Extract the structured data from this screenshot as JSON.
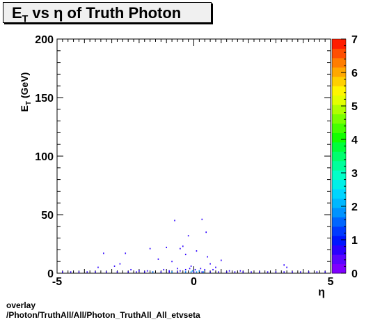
{
  "chart_data": {
    "type": "heatmap",
    "title": {
      "prefix": "E",
      "sub": "T",
      "rest": " vs  η of Truth Photon"
    },
    "xlabel": "η",
    "ylabel": {
      "prefix": "E",
      "sub": "T",
      "rest": " (GeV)"
    },
    "xlim": [
      -5,
      5
    ],
    "ylim": [
      0,
      200
    ],
    "x_ticks": [
      "-5",
      "0",
      "5"
    ],
    "y_ticks": [
      "0",
      "50",
      "100",
      "150",
      "200"
    ],
    "z_range": [
      0,
      7
    ],
    "z_ticks": [
      "0",
      "1",
      "2",
      "3",
      "4",
      "5",
      "6",
      "7"
    ],
    "grid": false,
    "palette": [
      "#7f00ff",
      "#5a05ff",
      "#2b00ff",
      "#0015ff",
      "#003aff",
      "#0066ff",
      "#0093ff",
      "#00b8ff",
      "#00d5ff",
      "#00f0e8",
      "#00ffc8",
      "#00ff9b",
      "#00ff6e",
      "#00ff3b",
      "#13ff00",
      "#45ff00",
      "#7aff00",
      "#b0ff00",
      "#e3ff00",
      "#fff600",
      "#ffd000",
      "#ffa800",
      "#ff7d00",
      "#ff4e00",
      "#ff1e00"
    ],
    "points": [
      [
        -0.7,
        45
      ],
      [
        0.3,
        46
      ],
      [
        0.45,
        35
      ],
      [
        -0.2,
        32
      ],
      [
        -0.4,
        23
      ],
      [
        -0.5,
        21
      ],
      [
        -1.0,
        22
      ],
      [
        -1.6,
        21
      ],
      [
        -2.5,
        17
      ],
      [
        -3.3,
        17
      ],
      [
        0.1,
        19
      ],
      [
        0.5,
        14
      ],
      [
        -0.3,
        16
      ],
      [
        0.6,
        8
      ],
      [
        -1.3,
        12
      ],
      [
        -0.8,
        10
      ],
      [
        1.0,
        11
      ],
      [
        -2.7,
        8
      ],
      [
        -2.9,
        6
      ],
      [
        3.3,
        7
      ],
      [
        3.4,
        5
      ],
      [
        -3.5,
        5
      ],
      [
        0.8,
        5
      ],
      [
        -0.1,
        6
      ],
      [
        -4.8,
        1
      ],
      [
        -4.5,
        1
      ],
      [
        -4.2,
        1
      ],
      [
        -3.9,
        1
      ],
      [
        -3.6,
        1
      ],
      [
        -3.2,
        1
      ],
      [
        -2.8,
        1
      ],
      [
        -2.4,
        1
      ],
      [
        -2.1,
        1
      ],
      [
        -1.8,
        1
      ],
      [
        -1.5,
        1
      ],
      [
        -1.2,
        1
      ],
      [
        -0.9,
        1
      ],
      [
        -0.6,
        1
      ],
      [
        -0.3,
        1
      ],
      [
        0.0,
        1
      ],
      [
        0.3,
        1
      ],
      [
        0.6,
        1
      ],
      [
        0.9,
        1
      ],
      [
        1.2,
        1
      ],
      [
        1.5,
        1
      ],
      [
        1.8,
        1
      ],
      [
        2.1,
        1
      ],
      [
        2.4,
        1
      ],
      [
        2.7,
        1
      ],
      [
        3.0,
        1
      ],
      [
        3.3,
        1
      ],
      [
        3.6,
        1
      ],
      [
        3.9,
        1
      ],
      [
        4.2,
        1
      ],
      [
        4.5,
        1
      ],
      [
        4.8,
        1
      ],
      [
        -0.5,
        2
      ],
      [
        -0.3,
        3
      ],
      [
        0.2,
        2
      ],
      [
        0.4,
        3
      ],
      [
        -0.9,
        2
      ],
      [
        -1.7,
        2
      ],
      [
        1.3,
        2
      ],
      [
        -2.3,
        3
      ],
      [
        -0.15,
        4
      ],
      [
        0.05,
        3
      ],
      [
        0.25,
        4
      ],
      [
        -0.6,
        4
      ],
      [
        -1.1,
        3
      ],
      [
        0.7,
        3
      ],
      [
        -2.0,
        2
      ],
      [
        1.7,
        2
      ]
    ],
    "hot_points": [
      [
        -0.1,
        1
      ],
      [
        0.1,
        1
      ],
      [
        -0.3,
        1
      ],
      [
        0.2,
        2
      ],
      [
        -0.05,
        2
      ],
      [
        0.35,
        1
      ],
      [
        -0.8,
        1
      ],
      [
        -1.5,
        1
      ]
    ]
  },
  "footer": {
    "line1": "overlay",
    "line2": "/Photon/TruthAll/All/Photon_TruthAll_All_etvseta"
  }
}
